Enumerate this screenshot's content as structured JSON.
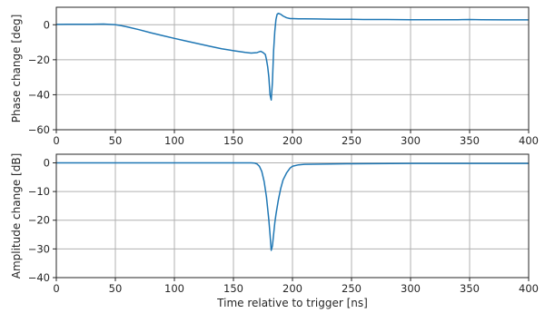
{
  "chart_data": [
    {
      "type": "line",
      "title": "",
      "xlabel": "",
      "ylabel": "Phase change [deg]",
      "xlim": [
        0,
        400
      ],
      "ylim": [
        -60,
        10
      ],
      "xticks": [
        0,
        50,
        100,
        150,
        200,
        250,
        300,
        350,
        400
      ],
      "yticks": [
        0,
        -20,
        -40,
        -60
      ],
      "grid": true,
      "series": [
        {
          "color": "#1f77b4",
          "x": [
            0,
            10,
            20,
            30,
            40,
            45,
            50,
            55,
            60,
            70,
            80,
            90,
            100,
            110,
            120,
            130,
            140,
            150,
            160,
            165,
            170,
            173,
            175,
            177,
            178,
            179,
            180,
            181,
            182,
            183,
            184,
            185,
            186,
            187,
            188,
            190,
            192,
            195,
            198,
            200,
            205,
            210,
            220,
            230,
            240,
            250,
            260,
            280,
            300,
            320,
            340,
            350,
            360,
            380,
            400
          ],
          "y": [
            0.2,
            0.3,
            0.3,
            0.3,
            0.4,
            0.2,
            0,
            -0.5,
            -1.2,
            -2.8,
            -4.6,
            -6.2,
            -7.8,
            -9.3,
            -10.8,
            -12.3,
            -13.7,
            -14.8,
            -15.8,
            -16.2,
            -15.9,
            -15.2,
            -15.8,
            -17,
            -20,
            -24,
            -30,
            -40,
            -43,
            -33,
            -15,
            -4,
            3,
            6,
            6.5,
            6,
            5,
            4,
            3.5,
            3.5,
            3.4,
            3.4,
            3.3,
            3.2,
            3.1,
            3.1,
            3.0,
            3.0,
            2.9,
            2.9,
            2.9,
            3.0,
            2.9,
            2.8,
            2.8
          ]
        }
      ]
    },
    {
      "type": "line",
      "title": "",
      "xlabel": "Time relative to trigger [ns]",
      "ylabel": "Amplitude change [dB]",
      "xlim": [
        0,
        400
      ],
      "ylim": [
        -40,
        3
      ],
      "xticks": [
        0,
        50,
        100,
        150,
        200,
        250,
        300,
        350,
        400
      ],
      "yticks": [
        0,
        -10,
        -20,
        -30,
        -40
      ],
      "grid": true,
      "series": [
        {
          "color": "#1f77b4",
          "x": [
            0,
            50,
            100,
            150,
            160,
            165,
            168,
            170,
            172,
            174,
            176,
            178,
            180,
            181,
            182,
            183,
            184,
            185,
            186,
            188,
            190,
            192,
            195,
            198,
            200,
            205,
            210,
            250,
            300,
            350,
            400
          ],
          "y": [
            0,
            0,
            0,
            0,
            0,
            0,
            -0.1,
            -0.4,
            -1.2,
            -3,
            -6.5,
            -12,
            -20,
            -25,
            -30.5,
            -29,
            -25,
            -21,
            -18,
            -13,
            -9,
            -6,
            -3.5,
            -1.8,
            -1.2,
            -0.7,
            -0.5,
            -0.3,
            -0.2,
            -0.2,
            -0.2
          ]
        }
      ]
    }
  ]
}
